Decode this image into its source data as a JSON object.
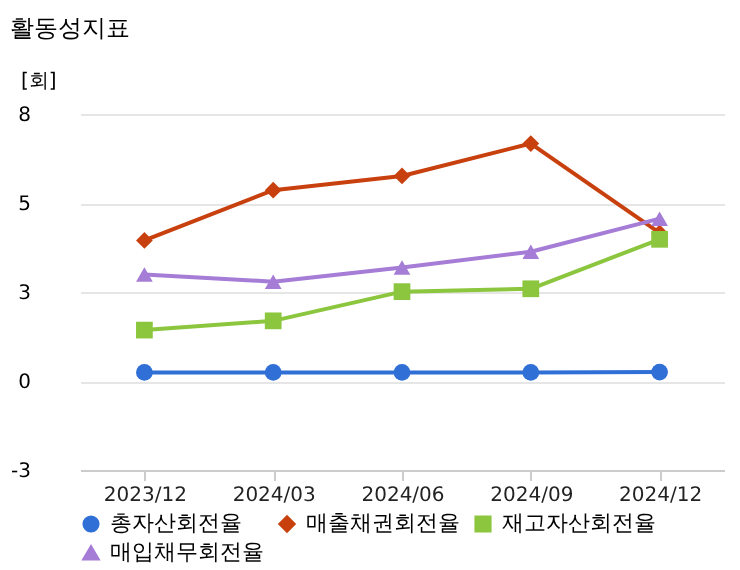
{
  "chart_data": {
    "type": "line",
    "title": "활동성지표",
    "ylabel": "[회]",
    "categories": [
      "2023/12",
      "2024/03",
      "2024/06",
      "2024/09",
      "2024/12"
    ],
    "series": [
      {
        "name": "총자산회전율",
        "color": "#2f6fd6",
        "marker": "circle",
        "values": [
          0.24,
          0.24,
          0.24,
          0.24,
          0.25
        ]
      },
      {
        "name": "매출채권회전율",
        "color": "#c8400e",
        "marker": "diamond",
        "values": [
          3.95,
          5.36,
          5.76,
          6.67,
          4.16
        ]
      },
      {
        "name": "재고자산회전율",
        "color": "#8cc63e",
        "marker": "square",
        "values": [
          1.43,
          1.69,
          2.51,
          2.59,
          3.98
        ]
      },
      {
        "name": "매입채무회전율",
        "color": "#a57cd6",
        "marker": "triangle",
        "values": [
          2.99,
          2.79,
          3.19,
          3.63,
          4.56
        ]
      }
    ],
    "ylim": [
      -2.5,
      7.5
    ],
    "yticks": [
      {
        "value": -2.5,
        "label": "-3"
      },
      {
        "value": 0,
        "label": "0"
      },
      {
        "value": 2.5,
        "label": "3"
      },
      {
        "value": 5,
        "label": "5"
      },
      {
        "value": 7.5,
        "label": "8"
      }
    ],
    "grid": "y",
    "legend": "bottom",
    "line_style": "solid"
  }
}
